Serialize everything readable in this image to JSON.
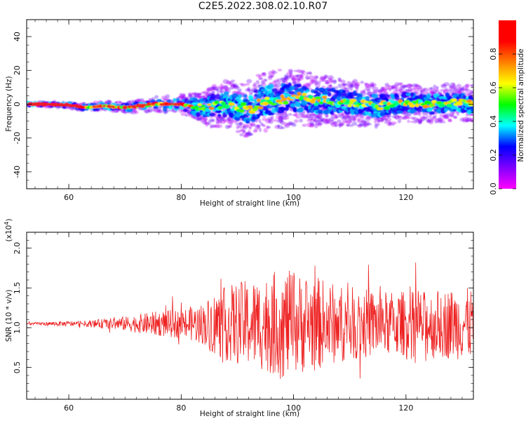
{
  "title": "C2E5.2022.308.02.10.R07",
  "chart_data": [
    {
      "type": "heatmap",
      "xlabel": "Height of straight line (km)",
      "ylabel": "Frequency (Hz)",
      "xlim": [
        52.5,
        132
      ],
      "ylim": [
        -50,
        50
      ],
      "xticks": [
        60,
        80,
        100,
        120
      ],
      "yticks": [
        -40,
        -20,
        0,
        20,
        40
      ],
      "colorbar": {
        "label": "Normalized spectral amplitude",
        "range": [
          0,
          1
        ],
        "ticks": [
          "0.0",
          "0.2",
          "0.4",
          "0.6",
          "0.8"
        ],
        "colormap": [
          "#ff00ff",
          "#8000ff",
          "#0000ff",
          "#00ffff",
          "#00ff00",
          "#ffff00",
          "#ff8000",
          "#ff0000",
          "#ff0000"
        ]
      },
      "ridge": {
        "x": [
          53,
          56,
          60,
          63,
          66,
          70,
          75,
          80,
          84,
          88,
          92,
          95,
          100,
          105,
          110,
          115,
          120,
          125,
          128,
          132
        ],
        "y": [
          0,
          0,
          -0.5,
          -2,
          -1,
          -2,
          0,
          0,
          -2,
          0,
          -3,
          2,
          4,
          2,
          1,
          -1,
          1,
          0,
          1,
          0
        ],
        "spread": [
          0.5,
          0.6,
          0.8,
          1.0,
          1.2,
          1.5,
          2.0,
          2.5,
          4.0,
          5.0,
          6.0,
          6.5,
          6.0,
          5.5,
          5.0,
          4.5,
          4.0,
          4.0,
          4.0,
          4.0
        ]
      }
    },
    {
      "type": "line",
      "xlabel": "Height of straight line (km)",
      "ylabel": "SNR (10 * v/v)",
      "yunit": "(x10",
      "yunit_exp": "4",
      "yunit_close": ")",
      "xlim": [
        52.5,
        132
      ],
      "ylim": [
        0.1,
        2.2
      ],
      "xticks": [
        60,
        80,
        100,
        120
      ],
      "yticks": [
        "0.5",
        "1.0",
        "1.5",
        "2.0"
      ],
      "color": "#ee2222",
      "baseline": 1.05,
      "envelope": {
        "x": [
          53,
          58,
          63,
          66,
          70,
          75,
          80,
          84,
          86,
          90,
          95,
          98,
          100,
          104,
          108,
          112,
          116,
          120,
          124,
          128,
          132
        ],
        "amplitude": [
          0.02,
          0.04,
          0.05,
          0.08,
          0.12,
          0.2,
          0.25,
          0.35,
          0.55,
          0.7,
          0.8,
          0.95,
          0.85,
          0.8,
          0.65,
          0.6,
          0.55,
          0.55,
          0.55,
          0.6,
          0.6
        ]
      }
    }
  ]
}
